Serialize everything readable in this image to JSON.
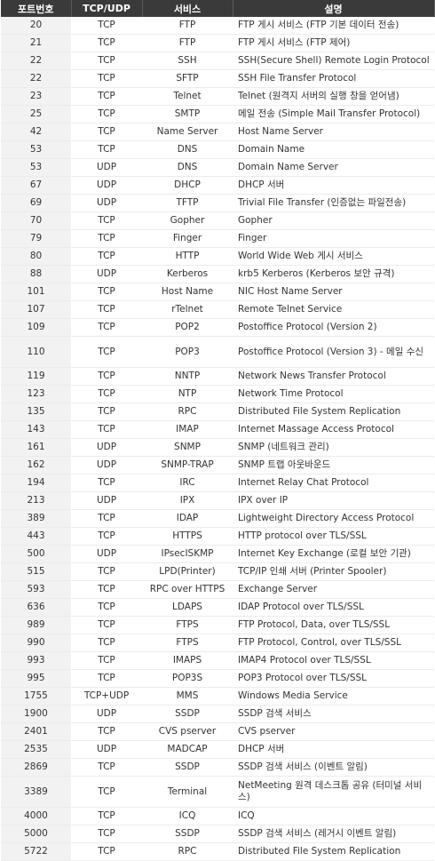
{
  "headers": {
    "port": "포트번호",
    "protocol": "TCP/UDP",
    "service": "서비스",
    "description": "설명"
  },
  "rows": [
    {
      "port": "20",
      "protocol": "TCP",
      "service": "FTP",
      "description": "FTP 게시 서비스 (FTP 기본 데이터 전송)"
    },
    {
      "port": "21",
      "protocol": "TCP",
      "service": "FTP",
      "description": "FTP 게시 서비스 (FTP 제어)"
    },
    {
      "port": "22",
      "protocol": "TCP",
      "service": "SSH",
      "description": "SSH(Secure Shell) Remote Login Protocol"
    },
    {
      "port": "22",
      "protocol": "TCP",
      "service": "SFTP",
      "description": "SSH File Transfer Protocol"
    },
    {
      "port": "23",
      "protocol": "TCP",
      "service": "Telnet",
      "description": "Telnet (원격지 서버의 실행 창을 얻어냄)"
    },
    {
      "port": "25",
      "protocol": "TCP",
      "service": "SMTP",
      "description": "메일 전송 (Simple Mail Transfer Protocol)"
    },
    {
      "port": "42",
      "protocol": "TCP",
      "service": "Name Server",
      "description": "Host Name Server"
    },
    {
      "port": "53",
      "protocol": "TCP",
      "service": "DNS",
      "description": "Domain Name"
    },
    {
      "port": "53",
      "protocol": "UDP",
      "service": "DNS",
      "description": "Domain Name Server"
    },
    {
      "port": "67",
      "protocol": "UDP",
      "service": "DHCP",
      "description": "DHCP 서버"
    },
    {
      "port": "69",
      "protocol": "UDP",
      "service": "TFTP",
      "description": "Trivial File Transfer (인증없는 파일전송)"
    },
    {
      "port": "70",
      "protocol": "TCP",
      "service": "Gopher",
      "description": "Gopher"
    },
    {
      "port": "79",
      "protocol": "TCP",
      "service": "Finger",
      "description": "Finger"
    },
    {
      "port": "80",
      "protocol": "TCP",
      "service": "HTTP",
      "description": "World Wide Web 게시 서비스"
    },
    {
      "port": "88",
      "protocol": "UDP",
      "service": "Kerberos",
      "description": "krb5 Kerberos (Kerberos 보안 규격)"
    },
    {
      "port": "101",
      "protocol": "TCP",
      "service": "Host Name",
      "description": "NIC Host Name Server"
    },
    {
      "port": "107",
      "protocol": "TCP",
      "service": "rTelnet",
      "description": "Remote Telnet Service"
    },
    {
      "port": "109",
      "protocol": "TCP",
      "service": "POP2",
      "description": "Postoffice Protocol (Version 2)"
    },
    {
      "port": "110",
      "protocol": "TCP",
      "service": "POP3",
      "description": "Postoffice Protocol (Version 3) - 메일 수신"
    },
    {
      "port": "119",
      "protocol": "TCP",
      "service": "NNTP",
      "description": "Network News Transfer Protocol"
    },
    {
      "port": "123",
      "protocol": "TCP",
      "service": "NTP",
      "description": "Network Time Protocol"
    },
    {
      "port": "135",
      "protocol": "TCP",
      "service": "RPC",
      "description": "Distributed File System Replication"
    },
    {
      "port": "143",
      "protocol": "TCP",
      "service": "IMAP",
      "description": "Internet Massage Access Protocol"
    },
    {
      "port": "161",
      "protocol": "UDP",
      "service": "SNMP",
      "description": "SNMP (네트워크 관리)"
    },
    {
      "port": "162",
      "protocol": "UDP",
      "service": "SNMP-TRAP",
      "description": "SNMP 트랩 아웃바운드"
    },
    {
      "port": "194",
      "protocol": "TCP",
      "service": "IRC",
      "description": "Internet Relay Chat Protocol"
    },
    {
      "port": "213",
      "protocol": "UDP",
      "service": "IPX",
      "description": "IPX over IP"
    },
    {
      "port": "389",
      "protocol": "TCP",
      "service": "IDAP",
      "description": "Lightweight Directory Access Protocol"
    },
    {
      "port": "443",
      "protocol": "TCP",
      "service": "HTTPS",
      "description": "HTTP protocol over TLS/SSL"
    },
    {
      "port": "500",
      "protocol": "UDP",
      "service": "IPsecISKMP",
      "description": "Internet Key Exchange (로컬 보안 기관)"
    },
    {
      "port": "515",
      "protocol": "TCP",
      "service": "LPD(Printer)",
      "description": "TCP/IP 인쇄 서버 (Printer Spooler)"
    },
    {
      "port": "593",
      "protocol": "TCP",
      "service": "RPC over HTTPS",
      "description": "Exchange Server"
    },
    {
      "port": "636",
      "protocol": "TCP",
      "service": "LDAPS",
      "description": "IDAP Protocol over TLS/SSL"
    },
    {
      "port": "989",
      "protocol": "TCP",
      "service": "FTPS",
      "description": "FTP Protocol, Data, over TLS/SSL"
    },
    {
      "port": "990",
      "protocol": "TCP",
      "service": "FTPS",
      "description": "FTP Protocol, Control, over TLS/SSL"
    },
    {
      "port": "993",
      "protocol": "TCP",
      "service": "IMAPS",
      "description": "IMAP4 Protocol over TLS/SSL"
    },
    {
      "port": "995",
      "protocol": "TCP",
      "service": "POP3S",
      "description": "POP3 Protocol over TLS/SSL"
    },
    {
      "port": "1755",
      "protocol": "TCP+UDP",
      "service": "MMS",
      "description": "Windows Media Service"
    },
    {
      "port": "1900",
      "protocol": "UDP",
      "service": "SSDP",
      "description": "SSDP 검색 서비스"
    },
    {
      "port": "2401",
      "protocol": "TCP",
      "service": "CVS pserver",
      "description": "CVS pserver"
    },
    {
      "port": "2535",
      "protocol": "UDP",
      "service": "MADCAP",
      "description": "DHCP 서버"
    },
    {
      "port": "2869",
      "protocol": "TCP",
      "service": "SSDP",
      "description": "SSDP 검색 서비스 (이벤트 알림)"
    },
    {
      "port": "3389",
      "protocol": "TCP",
      "service": "Terminal",
      "description": "NetMeeting 원격 데스크톱 공유 (터미널 서비스)"
    },
    {
      "port": "4000",
      "protocol": "TCP",
      "service": "ICQ",
      "description": "ICQ"
    },
    {
      "port": "5000",
      "protocol": "TCP",
      "service": "SSDP",
      "description": "SSDP 검색 서비스 (레거시 이벤트 알림)"
    },
    {
      "port": "5722",
      "protocol": "TCP",
      "service": "RPC",
      "description": "Distributed File System Replication"
    }
  ]
}
